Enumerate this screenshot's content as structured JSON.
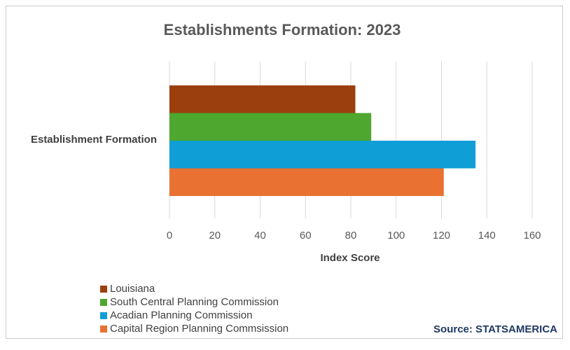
{
  "chart_data": {
    "type": "bar",
    "orientation": "horizontal",
    "title": "Establishments Formation: 2023",
    "categories": [
      "Establishment Formation"
    ],
    "xlabel": "Index Score",
    "ylabel": "",
    "xlim": [
      0,
      160
    ],
    "xticks": [
      0,
      20,
      40,
      60,
      80,
      100,
      120,
      140,
      160
    ],
    "grid": true,
    "legend_position": "bottom-left",
    "series": [
      {
        "name": "Louisiana",
        "values": [
          82
        ],
        "color": "#9b3f0f"
      },
      {
        "name": "South Central Planning Commission",
        "values": [
          89
        ],
        "color": "#4ea72e"
      },
      {
        "name": "Acadian Planning Commission",
        "values": [
          135
        ],
        "color": "#0f9ed5"
      },
      {
        "name": "Capital Region Planning Commsission",
        "values": [
          121
        ],
        "color": "#e97132"
      }
    ]
  },
  "source": "Source: STATSAMERICA"
}
